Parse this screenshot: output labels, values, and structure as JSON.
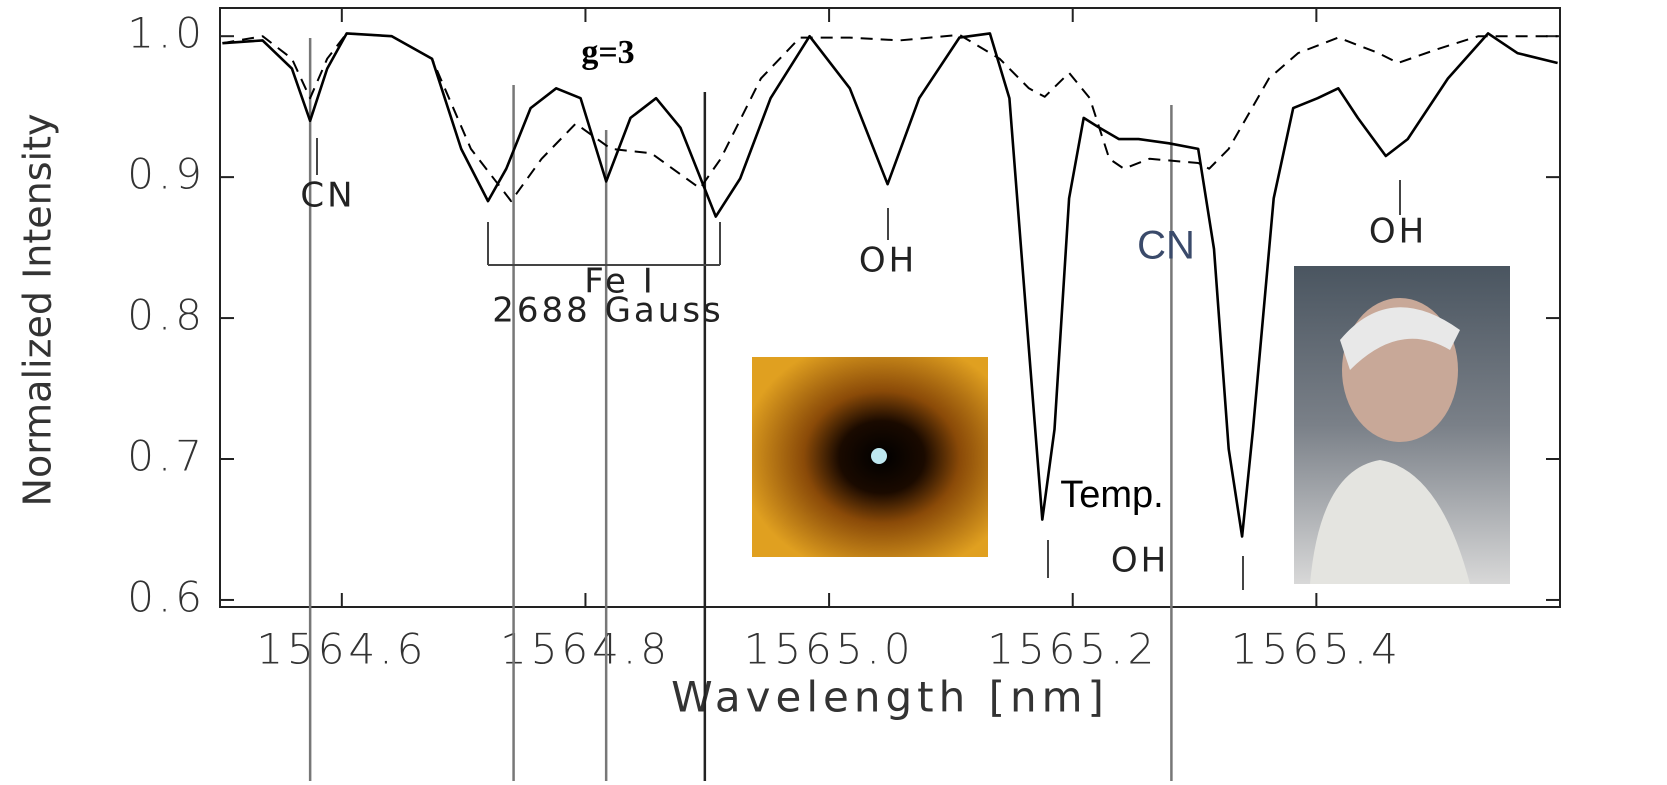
{
  "chart_data": {
    "type": "line",
    "xlabel": "Wavelength [nm]",
    "ylabel": "Normalized Intensity",
    "xlim": [
      1564.5,
      1565.6
    ],
    "ylim": [
      0.595,
      1.02
    ],
    "xticks": [
      1564.6,
      1564.8,
      {
        "value": 1565,
        "label": "1565.0"
      },
      1565.2,
      1565.4
    ],
    "yticks": [
      0.6,
      0.7,
      0.8,
      0.9,
      {
        "value": 1,
        "label": "1.0"
      }
    ],
    "vertical_lines": [
      1564.574,
      1564.741,
      1564.817,
      1564.898,
      1565.281
    ],
    "annotations": [
      "CN",
      "g=3",
      "Fe I",
      "2688 Gauss",
      "OH",
      "OH",
      "CN",
      "OH",
      "Temp.",
      "OH"
    ],
    "series": [
      {
        "color": "#000000",
        "dash": "solid",
        "x": [
          1564.502,
          1564.535,
          1564.559,
          1564.574,
          1564.588,
          1564.604,
          1564.641,
          1564.674,
          1564.698,
          1564.72,
          1564.735,
          1564.755,
          1564.776,
          1564.796,
          1564.817,
          1564.837,
          1564.858,
          1564.878,
          1564.907,
          1564.927,
          1564.952,
          1564.984,
          1565.017,
          1565.048,
          1565.074,
          1565.107,
          1565.132,
          1565.148,
          1565.164,
          1565.175,
          1565.185,
          1565.197,
          1565.209,
          1565.222,
          1565.238,
          1565.254,
          1565.279,
          1565.303,
          1565.316,
          1565.328,
          1565.339,
          1565.348,
          1565.365,
          1565.381,
          1565.401,
          1565.418,
          1565.434,
          1565.457,
          1565.475,
          1565.508,
          1565.541,
          1565.565,
          1565.598
        ],
        "values": [
          0.995,
          0.997,
          0.977,
          0.94,
          0.977,
          1.002,
          1.0,
          0.984,
          0.92,
          0.883,
          0.906,
          0.949,
          0.963,
          0.956,
          0.897,
          0.942,
          0.956,
          0.935,
          0.872,
          0.899,
          0.956,
          1.0,
          0.963,
          0.895,
          0.956,
          0.999,
          1.002,
          0.956,
          0.778,
          0.657,
          0.721,
          0.885,
          0.942,
          0.935,
          0.927,
          0.927,
          0.924,
          0.92,
          0.849,
          0.707,
          0.645,
          0.721,
          0.885,
          0.949,
          0.956,
          0.963,
          0.942,
          0.915,
          0.927,
          0.97,
          1.002,
          0.988,
          0.981
        ]
      },
      {
        "color": "#000000",
        "dash": "dashed",
        "x": [
          1564.502,
          1564.535,
          1564.559,
          1564.574,
          1564.588,
          1564.604,
          1564.641,
          1564.674,
          1564.706,
          1564.739,
          1564.764,
          1564.792,
          1564.821,
          1564.854,
          1564.894,
          1564.911,
          1564.944,
          1564.976,
          1565.017,
          1565.058,
          1565.107,
          1565.14,
          1565.164,
          1565.177,
          1565.197,
          1565.214,
          1565.23,
          1565.242,
          1565.263,
          1565.303,
          1565.312,
          1565.328,
          1565.361,
          1565.385,
          1565.418,
          1565.451,
          1565.467,
          1565.5,
          1565.533,
          1565.598
        ],
        "values": [
          0.995,
          1.0,
          0.984,
          0.956,
          0.984,
          1.002,
          1.0,
          0.984,
          0.92,
          0.883,
          0.913,
          0.938,
          0.92,
          0.917,
          0.892,
          0.913,
          0.97,
          0.999,
          0.999,
          0.997,
          1.001,
          0.984,
          0.963,
          0.957,
          0.974,
          0.956,
          0.913,
          0.906,
          0.913,
          0.91,
          0.906,
          0.92,
          0.97,
          0.988,
          0.999,
          0.988,
          0.981,
          0.991,
          1.0,
          1.0
        ]
      }
    ]
  }
}
